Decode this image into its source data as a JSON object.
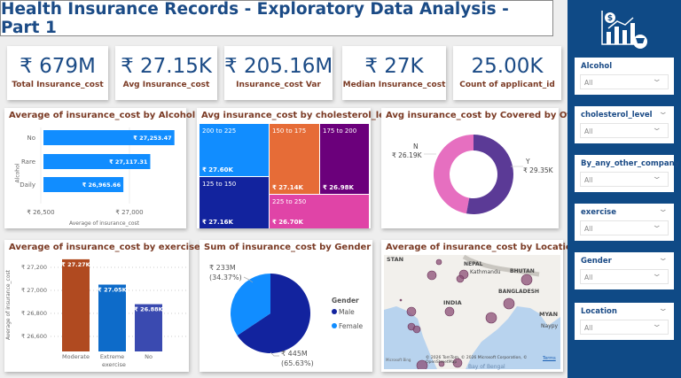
{
  "title": "Health Insurance Records - Exploratory Data Analysis - Part 1",
  "kpis": [
    {
      "value": "₹ 679M",
      "label": "Total Insurance_cost"
    },
    {
      "value": "₹ 27.15K",
      "label": "Avg Insurance_cost"
    },
    {
      "value": "₹ 205.16M",
      "label": "Insurance_cost Var"
    },
    {
      "value": "₹ 27K",
      "label": "Median Insurance_cost"
    },
    {
      "value": "25.00K",
      "label": "Count of applicant_id"
    }
  ],
  "chart_data": [
    {
      "type": "bar",
      "orientation": "horizontal",
      "title": "Average of insurance_cost by Alcohol",
      "xlabel": "Average of insurance_cost",
      "ylabel": "Alcohol",
      "categories": [
        "No",
        "Rare",
        "Daily"
      ],
      "values": [
        27253.47,
        27117.31,
        26965.66
      ],
      "data_labels": [
        "₹ 27,253.47",
        "₹ 27,117.31",
        "₹ 26,965.66"
      ],
      "xlim": [
        26500,
        27300
      ],
      "xticks": [
        "₹ 26,500",
        "₹ 27,000"
      ],
      "xtick_values": [
        26500,
        27000
      ],
      "color": "#118dff"
    },
    {
      "type": "treemap",
      "title": "Avg insurance_cost by cholesterol_level",
      "categories": [
        "200 to 225",
        "125 to 150",
        "150 to 175",
        "175 to 200",
        "225 to 250"
      ],
      "values": [
        27600,
        27160,
        27140,
        26980,
        26700
      ],
      "data_labels": [
        "₹ 27.60K",
        "₹ 27.16K",
        "₹ 27.14K",
        "₹ 26.98K",
        "₹ 26.70K"
      ],
      "colors": [
        "#118dff",
        "#12239e",
        "#e66c37",
        "#6b007b",
        "#e044a7"
      ]
    },
    {
      "type": "pie",
      "donut": true,
      "title": "Avg insurance_cost by Covered by Other",
      "categories": [
        "N",
        "Y"
      ],
      "values": [
        26190,
        29350
      ],
      "data_labels": [
        "₹ 26.19K",
        "₹ 29.35K"
      ],
      "colors": [
        "#e66fc0",
        "#5b3a96"
      ]
    },
    {
      "type": "bar",
      "title": "Average of insurance_cost by exercise",
      "xlabel": "exercise",
      "ylabel": "Average of insurance_cost",
      "categories": [
        "Moderate",
        "Extreme",
        "No"
      ],
      "values": [
        27270,
        27050,
        26880
      ],
      "data_labels": [
        "₹ 27.27K",
        "₹ 27.05K",
        "₹ 26.88K"
      ],
      "ylim": [
        26500,
        27300
      ],
      "yticks": [
        "₹ 27,200",
        "₹ 27,000",
        "₹ 26,800",
        "₹ 26,600"
      ],
      "ytick_values": [
        27200,
        27000,
        26800,
        26600
      ],
      "colors": [
        "#b04a20",
        "#0d6bc9",
        "#3a4ab0"
      ],
      "grid": true
    },
    {
      "type": "pie",
      "title": "Sum of insurance_cost by Gender",
      "legend_title": "Gender",
      "legend_position": "right",
      "categories": [
        "Male",
        "Female"
      ],
      "values": [
        445,
        233
      ],
      "data_labels": [
        "₹ 445M\n(65.63%)",
        "₹ 233M\n(34.37%)"
      ],
      "label_lines": [
        [
          "₹ 445M",
          "(65.63%)"
        ],
        [
          "₹ 233M",
          "(34.37%)"
        ]
      ],
      "colors": [
        "#12239e",
        "#118dff"
      ]
    },
    {
      "type": "map",
      "title": "Average of insurance_cost by Location",
      "map_labels": [
        "STAN",
        "NEPAL",
        "Kathmandu",
        "BHUTAN",
        "BANGLADESH",
        "INDIA",
        "MYAN",
        "Naypy",
        "Bay of Bengal"
      ],
      "attribution": "© 2026 TomTom, © 2026 Microsoft Corporation, © OpenStreetMap",
      "terms": "Terms",
      "provider": "Microsoft Bing",
      "bubble_color": "#8b4d75"
    }
  ],
  "sidebar": {
    "slicers": [
      {
        "title": "Alcohol",
        "value": "All"
      },
      {
        "title": "cholesterol_level",
        "value": "All"
      },
      {
        "title": "By_any_other_company",
        "value": "All"
      },
      {
        "title": "exercise",
        "value": "All"
      },
      {
        "title": "Gender",
        "value": "All"
      },
      {
        "title": "Location",
        "value": "All"
      }
    ]
  }
}
